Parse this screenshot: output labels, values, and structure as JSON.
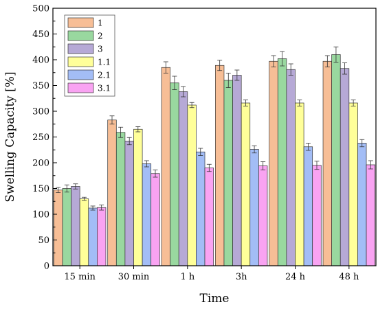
{
  "chart_data": {
    "type": "bar",
    "xlabel": "Time",
    "ylabel": "Swelling Capacity [%]",
    "ylim": [
      0,
      500
    ],
    "yticks": [
      0,
      50,
      100,
      150,
      200,
      250,
      300,
      350,
      400,
      450,
      500
    ],
    "categories": [
      "15 min",
      "30 min",
      "1 h",
      "3h",
      "24 h",
      "48 h"
    ],
    "legend_position": "top-left",
    "grid": false,
    "series": [
      {
        "name": "1",
        "color": "#F7BE96",
        "values": [
          147,
          283,
          385,
          389,
          397,
          397
        ],
        "errors": [
          5,
          8,
          11,
          10,
          11,
          11
        ]
      },
      {
        "name": "2",
        "color": "#99D89F",
        "values": [
          150,
          259,
          355,
          360,
          402,
          410
        ],
        "errors": [
          7,
          10,
          13,
          14,
          14,
          15
        ]
      },
      {
        "name": "3",
        "color": "#B6A9D6",
        "values": [
          154,
          242,
          338,
          370,
          381,
          383
        ],
        "errors": [
          5,
          7,
          10,
          10,
          11,
          11
        ]
      },
      {
        "name": "1.1",
        "color": "#FFFF99",
        "values": [
          130,
          265,
          312,
          316,
          316,
          316
        ],
        "errors": [
          3,
          5,
          5,
          6,
          6,
          6
        ]
      },
      {
        "name": "2.1",
        "color": "#A3BDF6",
        "values": [
          112,
          198,
          221,
          226,
          231,
          238
        ],
        "errors": [
          4,
          6,
          7,
          7,
          7,
          7
        ]
      },
      {
        "name": "3.1",
        "color": "#F9A3F2",
        "values": [
          113,
          179,
          190,
          194,
          195,
          196
        ],
        "errors": [
          5,
          7,
          7,
          8,
          8,
          8
        ]
      }
    ]
  }
}
